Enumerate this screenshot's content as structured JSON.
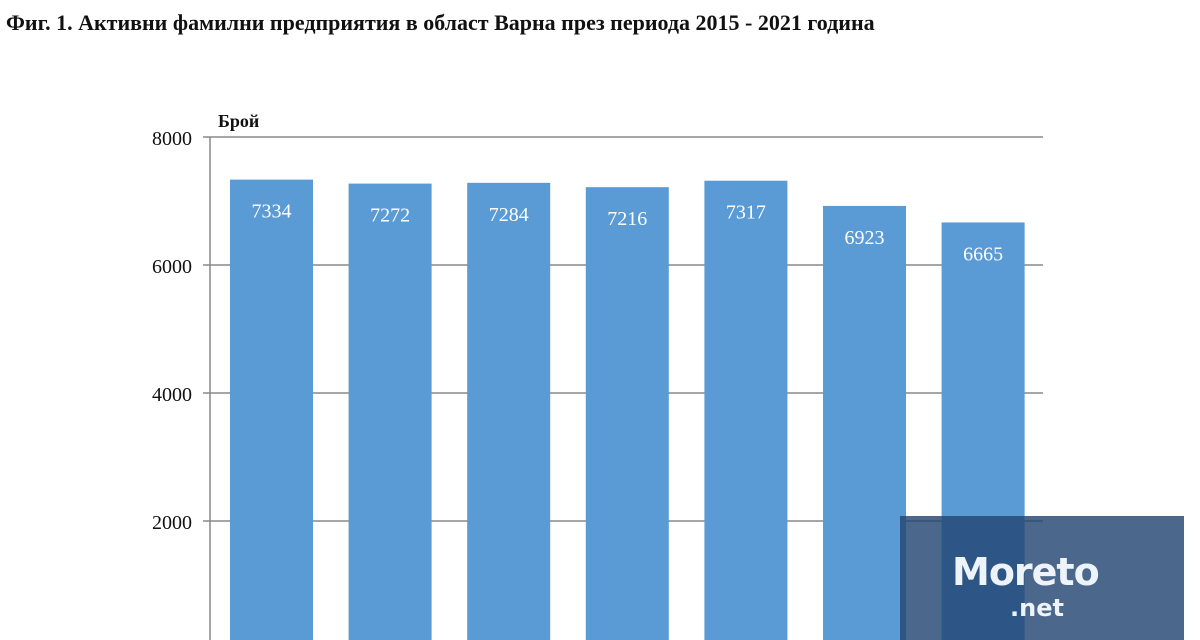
{
  "title": "Фиг. 1. Активни фамилни предприятия в област Варна през периода 2015 - 2021 година",
  "watermark": {
    "brand": "Moreto",
    "suffix": ".net"
  },
  "chart_data": {
    "type": "bar",
    "title": "Фиг. 1. Активни фамилни предприятия в област Варна през периода 2015 - 2021 година",
    "ylabel": "Брой",
    "ylim": [
      0,
      8000
    ],
    "yticks": [
      2000,
      4000,
      6000,
      8000
    ],
    "grid": true,
    "values": [
      7334,
      7272,
      7284,
      7216,
      7317,
      6923,
      6665
    ],
    "bar_color": "#5b9bd5",
    "label_color": "#ffffff"
  }
}
